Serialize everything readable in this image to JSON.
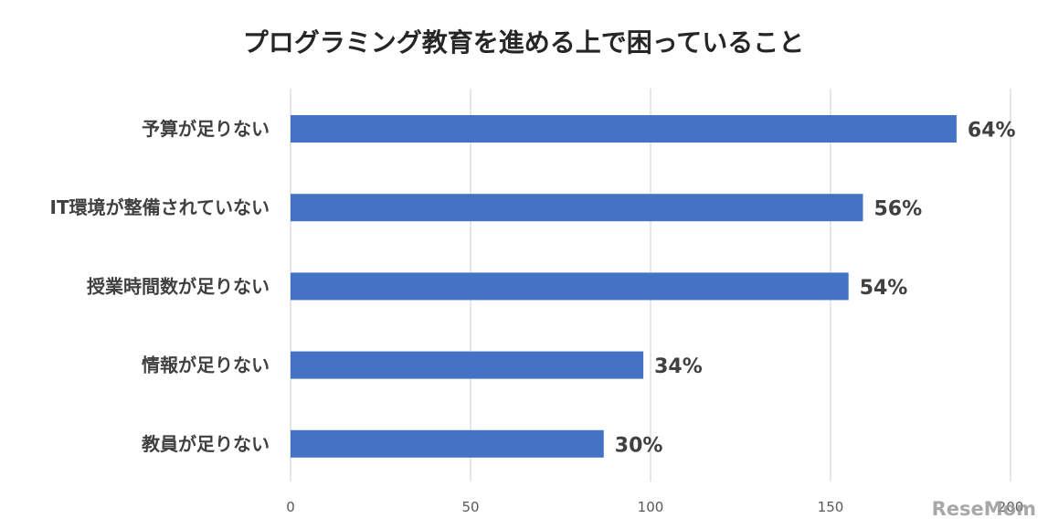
{
  "watermark": "ReseMom",
  "chart_data": {
    "type": "bar",
    "orientation": "horizontal",
    "title": "プログラミング教育を進める上で困っていること",
    "categories": [
      "予算が足りない",
      "IT環境が整備されていない",
      "授業時間数が足りない",
      "情報が足りない",
      "教員が足りない"
    ],
    "values": [
      185,
      159,
      155,
      98,
      87
    ],
    "data_labels": [
      "64%",
      "56%",
      "54%",
      "34%",
      "30%"
    ],
    "xlim": [
      0,
      200
    ],
    "x_ticks": [
      0,
      50,
      100,
      150,
      200
    ],
    "x_tick_labels": [
      "0",
      "50",
      "100",
      "150",
      "200"
    ],
    "grid": true,
    "bar_color": "#4472c4",
    "xlabel": "",
    "ylabel": ""
  }
}
